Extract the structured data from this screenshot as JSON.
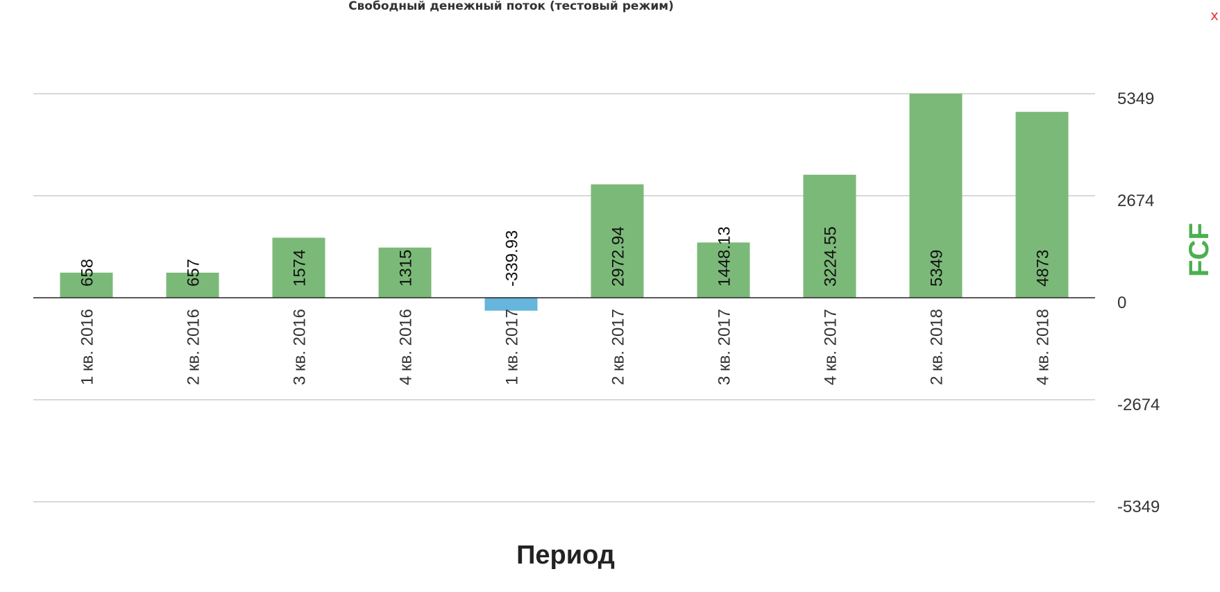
{
  "close_label": "x",
  "chart_data": {
    "type": "bar",
    "title": "Свободный денежный поток (тестовый режим)",
    "xlabel": "Период",
    "ylabel": "FCF",
    "categories": [
      "1 кв. 2016",
      "2 кв. 2016",
      "3 кв. 2016",
      "4 кв. 2016",
      "1 кв. 2017",
      "2 кв. 2017",
      "3 кв. 2017",
      "4 кв. 2017",
      "2 кв. 2018",
      "4 кв. 2018"
    ],
    "values": [
      658,
      657,
      1574,
      1315,
      -339.93,
      2972.94,
      1448.13,
      3224.55,
      5349,
      4873
    ],
    "value_labels": [
      "658",
      "657",
      "1574",
      "1315",
      "-339.93",
      "2972.94",
      "1448.13",
      "3224.55",
      "5349",
      "4873"
    ],
    "yticks": [
      5349,
      2674,
      0,
      -2674,
      -5349
    ],
    "ylim": [
      -5349,
      5349
    ],
    "y_axis_position": "right",
    "grid": true,
    "colors": {
      "positive": "#7bb978",
      "negative": "#66b5dc",
      "ylabel": "#4caf50"
    }
  }
}
